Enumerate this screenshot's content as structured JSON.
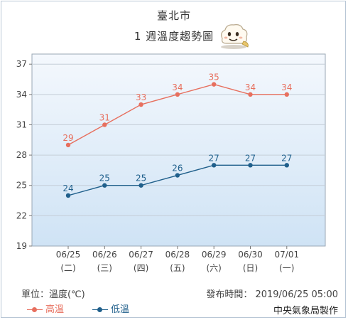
{
  "header": {
    "city": "臺北市",
    "subtitle": "1 週溫度趨勢圖",
    "mascot_icon": "cloud-mascot-icon"
  },
  "footer": {
    "unit": "單位：溫度(℃)",
    "published": "發布時間： 2019/06/25 05:00",
    "maker": "中央氣象局製作"
  },
  "colors": {
    "high": "#e76f5e",
    "low": "#1f5f8b",
    "grid": "#c5ced8",
    "plot_bg_top": "#f4f8fd",
    "plot_bg_bottom": "#cfe3f5"
  },
  "chart_data": {
    "type": "line",
    "categories": [
      "06/25",
      "06/26",
      "06/27",
      "06/28",
      "06/29",
      "06/30",
      "07/01"
    ],
    "weekdays": [
      "(二)",
      "(三)",
      "(四)",
      "(五)",
      "(六)",
      "(日)",
      "(一)"
    ],
    "series": [
      {
        "name": "高溫",
        "values": [
          29,
          31,
          33,
          34,
          35,
          34,
          34
        ]
      },
      {
        "name": "低溫",
        "values": [
          24,
          25,
          25,
          26,
          27,
          27,
          27
        ]
      }
    ],
    "yticks": [
      19,
      22,
      25,
      28,
      31,
      34,
      37
    ],
    "ylim": [
      19,
      38
    ],
    "grid": true,
    "legend_position": "bottom-left"
  }
}
